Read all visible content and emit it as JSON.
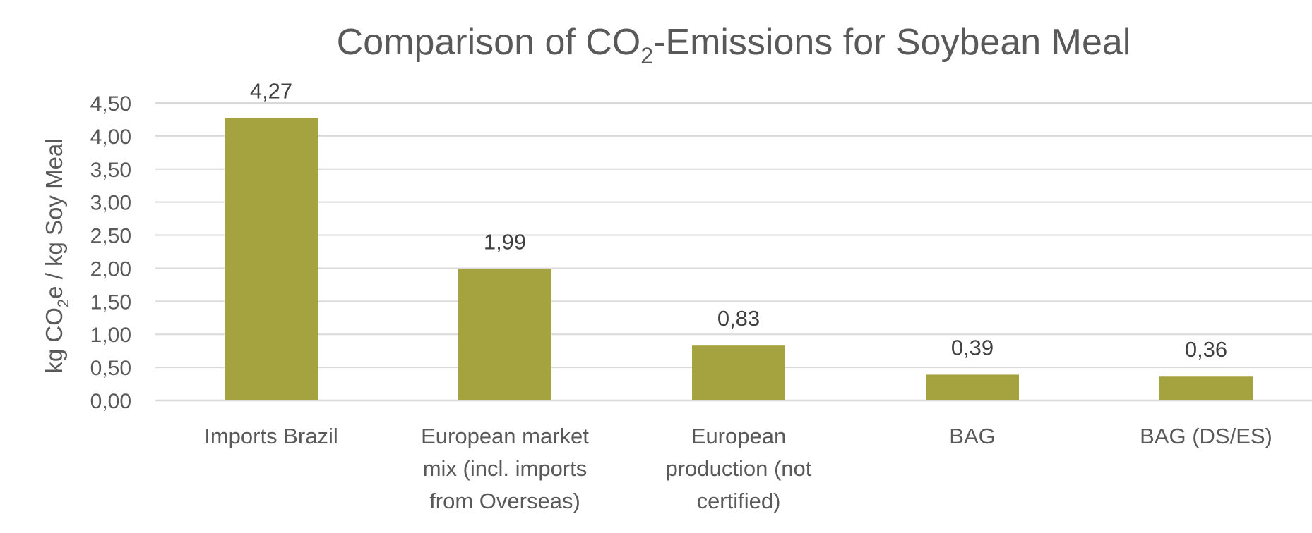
{
  "chart_data": {
    "type": "bar",
    "title": "Comparison of CO2-Emissions for Soybean Meal",
    "title_parts": {
      "before": "Comparison of CO",
      "subscript": "2",
      "after": "-Emissions for Soybean Meal"
    },
    "ylabel": "kg CO2e / kg Soy Meal",
    "ylabel_parts": {
      "before": "kg CO",
      "subscript": "2",
      "after": "e / kg Soy Meal"
    },
    "xlabel": "",
    "categories": [
      "Imports Brazil",
      "European market mix (incl. imports from Overseas)",
      "European production (not certified)",
      "BAG",
      "BAG (DS/ES)"
    ],
    "category_lines": [
      [
        "Imports Brazil"
      ],
      [
        "European market",
        "mix (incl. imports",
        "from Overseas)"
      ],
      [
        "European",
        "production (not",
        "certified)"
      ],
      [
        "BAG"
      ],
      [
        "BAG (DS/ES)"
      ]
    ],
    "values": [
      4.27,
      1.99,
      0.83,
      0.39,
      0.36
    ],
    "data_labels": [
      "4,27",
      "1,99",
      "0,83",
      "0,39",
      "0,36"
    ],
    "ylim": [
      0,
      4.5
    ],
    "yticks": [
      0,
      0.5,
      1,
      1.5,
      2,
      2.5,
      3,
      3.5,
      4,
      4.5
    ],
    "ytick_labels": [
      "0,00",
      "0,50",
      "1,00",
      "1,50",
      "2,00",
      "2,50",
      "3,00",
      "3,50",
      "4,00",
      "4,50"
    ],
    "grid": true,
    "legend": "none",
    "colors": {
      "bar": "#a5a33f",
      "grid": "#d9d9d9",
      "text": "#595959",
      "data_label": "#404040"
    }
  }
}
